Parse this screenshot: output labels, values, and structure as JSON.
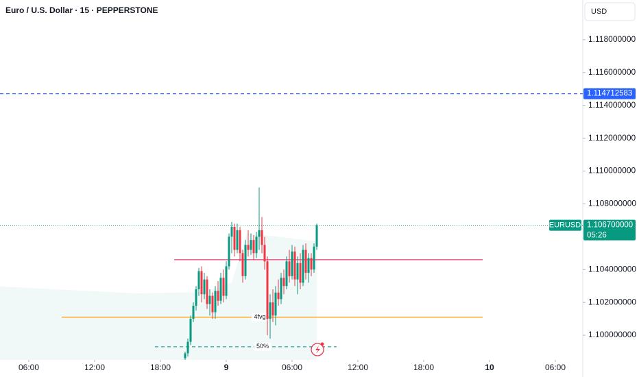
{
  "header": {
    "title": "Euro / U.S. Dollar · 15 · PEPPERSTONE",
    "currency": "USD"
  },
  "chart_data": {
    "type": "candlestick",
    "x": [
      20.25,
      20.5,
      20.75,
      21,
      21.25,
      21.5,
      21.75,
      22,
      22.25,
      22.5,
      22.75,
      23,
      23.25,
      23.5,
      23.75,
      24,
      24.25,
      24.5,
      24.75,
      25,
      25.25,
      25.5,
      25.75,
      26,
      26.25,
      26.5,
      26.75,
      27,
      27.25,
      27.5,
      27.75,
      28,
      28.25,
      28.5,
      28.75,
      29,
      29.25,
      29.5,
      29.75,
      30,
      30.25,
      30.5,
      30.75,
      31,
      31.25,
      31.5,
      31.75,
      32,
      32.25
    ],
    "open": [
      1.0986,
      1.0989,
      1.0996,
      1.101,
      1.1018,
      1.1028,
      1.1039,
      1.1025,
      1.1034,
      1.1019,
      1.1024,
      1.1014,
      1.1027,
      1.1021,
      1.1035,
      1.1024,
      1.1042,
      1.106,
      1.1066,
      1.1052,
      1.1064,
      1.105,
      1.1036,
      1.1055,
      1.1052,
      1.1058,
      1.105,
      1.106,
      1.1064,
      1.1055,
      1.1045,
      1.101,
      1.102,
      1.1012,
      1.1026,
      1.1022,
      1.1035,
      1.103,
      1.1045,
      1.1036,
      1.1051,
      1.1034,
      1.1044,
      1.1032,
      1.1052,
      1.1038,
      1.1047,
      1.104,
      1.1054
    ],
    "high": [
      1.099,
      1.0998,
      1.1012,
      1.102,
      1.103,
      1.1041,
      1.1042,
      1.1038,
      1.1036,
      1.1028,
      1.1026,
      1.103,
      1.1033,
      1.1038,
      1.104,
      1.1045,
      1.1062,
      1.1069,
      1.1068,
      1.1068,
      1.1066,
      1.1052,
      1.1058,
      1.1064,
      1.1062,
      1.1061,
      1.1063,
      1.109,
      1.1072,
      1.106,
      1.1048,
      1.1025,
      1.1028,
      1.103,
      1.1034,
      1.1038,
      1.104,
      1.1048,
      1.1052,
      1.1055,
      1.1054,
      1.1048,
      1.105,
      1.1055,
      1.1056,
      1.105,
      1.105,
      1.1056,
      1.1068
    ],
    "low": [
      1.0985,
      1.0987,
      1.0994,
      1.1008,
      1.1015,
      1.1024,
      1.102,
      1.1022,
      1.1016,
      1.1012,
      1.101,
      1.101,
      1.1018,
      1.1019,
      1.102,
      1.1022,
      1.104,
      1.105,
      1.1048,
      1.105,
      1.1045,
      1.1032,
      1.1034,
      1.1048,
      1.1049,
      1.1046,
      1.1047,
      1.1052,
      1.105,
      1.104,
      1.1,
      1.0998,
      1.1008,
      1.1006,
      1.1018,
      1.1019,
      1.1025,
      1.1028,
      1.1032,
      1.1034,
      1.103,
      1.1025,
      1.1028,
      1.103,
      1.1034,
      1.1032,
      1.1036,
      1.1038,
      1.1052
    ],
    "close": [
      1.0989,
      1.0996,
      1.101,
      1.1018,
      1.1028,
      1.1039,
      1.1025,
      1.1034,
      1.1019,
      1.1024,
      1.1014,
      1.1027,
      1.1021,
      1.1035,
      1.1024,
      1.1042,
      1.106,
      1.1066,
      1.1052,
      1.1064,
      1.105,
      1.1036,
      1.1055,
      1.1052,
      1.1058,
      1.105,
      1.106,
      1.1064,
      1.1055,
      1.1045,
      1.101,
      1.102,
      1.1012,
      1.1026,
      1.1022,
      1.1035,
      1.103,
      1.1045,
      1.1036,
      1.1051,
      1.1034,
      1.1044,
      1.1032,
      1.1052,
      1.1038,
      1.1047,
      1.104,
      1.1054,
      1.1067
    ],
    "up_color": "#089981",
    "down_color": "#f23645",
    "ylim": [
      1.0985,
      1.12042
    ],
    "yticks": [
      {
        "value": 1.1,
        "label": "1.100000000"
      },
      {
        "value": 1.102,
        "label": "1.102000000"
      },
      {
        "value": 1.104,
        "label": "1.104000000"
      },
      {
        "value": 1.108,
        "label": "1.108000000"
      },
      {
        "value": 1.11,
        "label": "1.110000000"
      },
      {
        "value": 1.112,
        "label": "1.112000000"
      },
      {
        "value": 1.114,
        "label": "1.114000000"
      },
      {
        "value": 1.116,
        "label": "1.116000000"
      },
      {
        "value": 1.118,
        "label": "1.118000000"
      }
    ],
    "xlim": [
      3.375,
      56.5
    ],
    "xticks": [
      {
        "value": 6,
        "label": "06:00"
      },
      {
        "value": 12,
        "label": "12:00"
      },
      {
        "value": 18,
        "label": "18:00"
      },
      {
        "value": 24,
        "label": "9"
      },
      {
        "value": 30,
        "label": "06:00"
      },
      {
        "value": 36,
        "label": "12:00"
      },
      {
        "value": 42,
        "label": "18:00"
      },
      {
        "value": 48,
        "label": "10"
      },
      {
        "value": 54,
        "label": "06:00"
      }
    ],
    "symbol": "EURUSD",
    "last_price": {
      "value": 1.1067,
      "label": "1.106700000"
    },
    "countdown": "05:26",
    "levels": [
      {
        "value": 1.114712583,
        "color": "#2962ff",
        "style": "dashed"
      },
      {
        "value": 1.1046,
        "color": "#f23670",
        "style": "solid",
        "x": [
          19.25,
          47.375
        ]
      },
      {
        "value": 1.1011,
        "color": "#ff9800",
        "style": "solid",
        "x": [
          9,
          47.375
        ],
        "label": "4fvg"
      },
      {
        "value": 1.0993,
        "color": "#26a69a",
        "style": "dashed",
        "x": [
          17.5,
          34.06
        ],
        "label": "50%"
      }
    ]
  }
}
